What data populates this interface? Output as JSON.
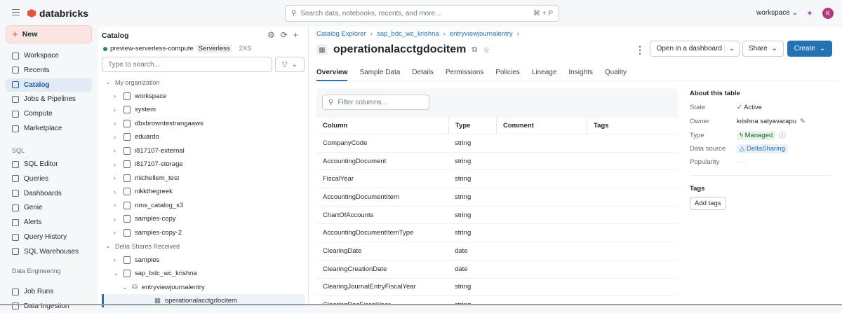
{
  "topbar": {
    "brand": "databricks",
    "search_placeholder": "Search data, notebooks, recents, and more...",
    "search_shortcut": "⌘ + P",
    "workspace": "workspace",
    "avatar_initial": "K"
  },
  "nav": {
    "new_label": "New",
    "items": [
      {
        "label": "Workspace"
      },
      {
        "label": "Recents"
      },
      {
        "label": "Catalog",
        "active": true
      },
      {
        "label": "Jobs & Pipelines"
      },
      {
        "label": "Compute"
      },
      {
        "label": "Marketplace"
      }
    ],
    "sql_section": "SQL",
    "sql_items": [
      {
        "label": "SQL Editor"
      },
      {
        "label": "Queries"
      },
      {
        "label": "Dashboards"
      },
      {
        "label": "Genie"
      },
      {
        "label": "Alerts"
      },
      {
        "label": "Query History"
      },
      {
        "label": "SQL Warehouses"
      }
    ],
    "de_section": "Data Engineering",
    "de_items": [
      {
        "label": "Job Runs"
      },
      {
        "label": "Data Ingestion"
      }
    ]
  },
  "catalog": {
    "title": "Catalog",
    "compute": "preview-serverless-compute",
    "compute_type": "Serverless",
    "compute_size": "2XS",
    "search_placeholder": "Type to search...",
    "tree": [
      {
        "label": "My organization",
        "group": true,
        "level": 0
      },
      {
        "label": "workspace",
        "level": 1
      },
      {
        "label": "system",
        "level": 1
      },
      {
        "label": "dbxbrowntestrangaaws",
        "level": 1
      },
      {
        "label": "eduardo",
        "level": 1
      },
      {
        "label": "i817107-external",
        "level": 1
      },
      {
        "label": "i817107-storage",
        "level": 1
      },
      {
        "label": "michellem_test",
        "level": 1
      },
      {
        "label": "nikkthegreek",
        "level": 1
      },
      {
        "label": "nms_catalog_s3",
        "level": 1
      },
      {
        "label": "samples-copy",
        "level": 1
      },
      {
        "label": "samples-copy-2",
        "level": 1
      },
      {
        "label": "Delta Shares Received",
        "group": true,
        "level": 0
      },
      {
        "label": "samples",
        "level": 1
      },
      {
        "label": "sap_bdc_wc_krishna",
        "level": 1,
        "expanded": true
      },
      {
        "label": "entryviewjournalentry",
        "level": 2,
        "expanded": true
      },
      {
        "label": "operationalacctgdocitem",
        "level": 3,
        "selected": true
      }
    ]
  },
  "main": {
    "breadcrumb": [
      "Catalog Explorer",
      "sap_bdc_wc_krishna",
      "entryviewjournalentry"
    ],
    "title": "operationalacctgdocitem",
    "buttons": {
      "open_dashboard": "Open in a dashboard",
      "share": "Share",
      "create": "Create"
    },
    "tabs": [
      "Overview",
      "Sample Data",
      "Details",
      "Permissions",
      "Policies",
      "Lineage",
      "Insights",
      "Quality"
    ],
    "active_tab": "Overview",
    "filter_placeholder": "Filter columns...",
    "columns_header": [
      "Column",
      "Type",
      "Comment",
      "Tags"
    ],
    "columns": [
      [
        "CompanyCode",
        "string"
      ],
      [
        "AccountingDocument",
        "string"
      ],
      [
        "FiscalYear",
        "string"
      ],
      [
        "AccountingDocumentItem",
        "string"
      ],
      [
        "ChartOfAccounts",
        "string"
      ],
      [
        "AccountingDocumentItemType",
        "string"
      ],
      [
        "ClearingDate",
        "date"
      ],
      [
        "ClearingCreationDate",
        "date"
      ],
      [
        "ClearingJournalEntryFiscalYear",
        "string"
      ],
      [
        "ClearingDocFiscalYear",
        "string"
      ]
    ],
    "about": {
      "title": "About this table",
      "state_label": "State",
      "state": "Active",
      "owner_label": "Owner",
      "owner": "krishna satyavarapu",
      "type_label": "Type",
      "type": "Managed",
      "source_label": "Data source",
      "source": "DeltaSharing",
      "popularity_label": "Popularity",
      "popularity": "----",
      "tags_title": "Tags",
      "add_tags": "Add tags"
    }
  },
  "colors": {
    "accent": "#2272b4",
    "brand": "#eb4e3d",
    "active": "#1f8f3d"
  }
}
